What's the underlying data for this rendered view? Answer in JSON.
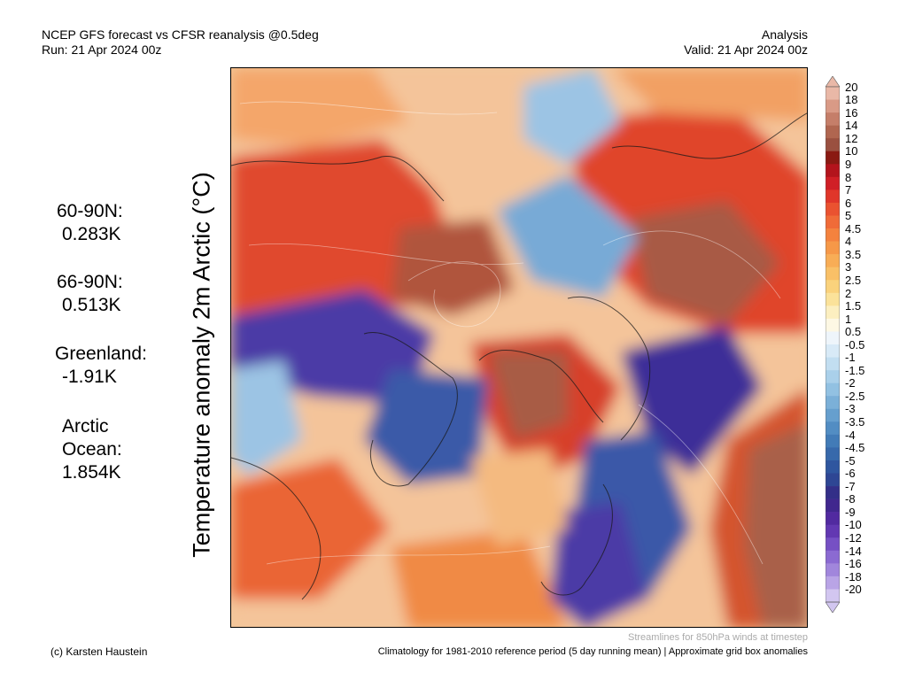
{
  "header": {
    "title_line1": "NCEP GFS forecast vs CFSR reanalysis @0.5deg",
    "title_line2": "Run: 21 Apr 2024 00z",
    "analysis_label": "Analysis",
    "valid_label": "Valid: 21 Apr 2024 00z"
  },
  "stats": {
    "s1_label": "60-90N:",
    "s1_value": "0.283K",
    "s2_label": "66-90N:",
    "s2_value": "0.513K",
    "s3_label": "Greenland:",
    "s3_value": "-1.91K",
    "s4_label1": "Arctic",
    "s4_label2": "Ocean:",
    "s4_value": "1.854K"
  },
  "map": {
    "title": "Temperature anomaly 2m Arctic (°C)"
  },
  "colorbar": {
    "levels": [
      "20",
      "18",
      "16",
      "14",
      "12",
      "10",
      "9",
      "8",
      "7",
      "6",
      "5",
      "4.5",
      "4",
      "3.5",
      "3",
      "2.5",
      "2",
      "1.5",
      "1",
      "0.5",
      "-0.5",
      "-1",
      "-1.5",
      "-2",
      "-2.5",
      "-3",
      "-3.5",
      "-4",
      "-4.5",
      "-5",
      "-6",
      "-7",
      "-8",
      "-9",
      "-10",
      "-12",
      "-14",
      "-16",
      "-18",
      "-20"
    ],
    "colors": [
      "#e9b8a7",
      "#d99a86",
      "#c57e69",
      "#b06650",
      "#9a5040",
      "#8a1a12",
      "#b3141c",
      "#d01f26",
      "#e0362a",
      "#ea5230",
      "#f06b38",
      "#f4823e",
      "#f69848",
      "#f8ad56",
      "#f9c067",
      "#fad27c",
      "#fbe29a",
      "#fcefc0",
      "#fdf8e4",
      "#eef5fb",
      "#d8eaf7",
      "#c2def1",
      "#aad0ea",
      "#92c1e2",
      "#7bb0d8",
      "#669fce",
      "#528dc3",
      "#427bb7",
      "#3769ab",
      "#2f569f",
      "#2e4694",
      "#332f88",
      "#40278e",
      "#512aa0",
      "#6238b2",
      "#7650c4",
      "#8b6ad2",
      "#a186dc",
      "#b9a4e6",
      "#d2c6f0"
    ]
  },
  "footer": {
    "stream_note": "Streamlines for 850hPa winds at timestep",
    "copyright": "(c) Karsten Haustein",
    "climatology_note": "Climatology for 1981-2010 reference period (5 day running mean) | Approximate grid box anomalies"
  }
}
